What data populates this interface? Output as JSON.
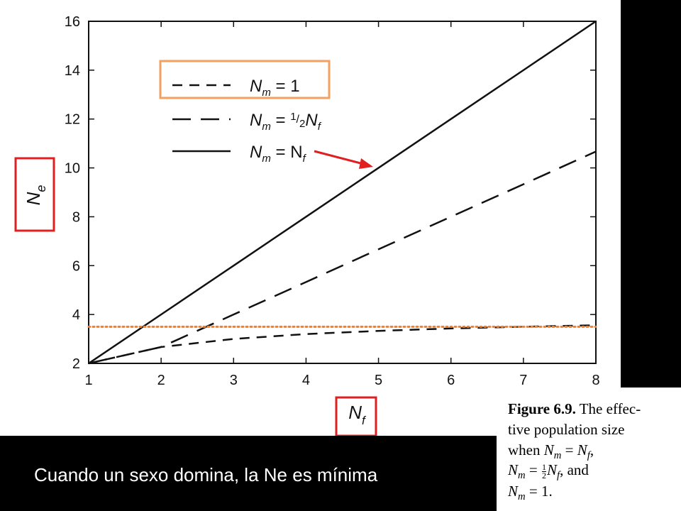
{
  "chart_data": {
    "type": "line",
    "x": [
      1,
      2,
      3,
      4,
      5,
      6,
      7,
      8
    ],
    "xlim": [
      1,
      8
    ],
    "ylim": [
      2,
      16
    ],
    "xticks": [
      "1",
      "2",
      "3",
      "4",
      "5",
      "6",
      "7",
      "8"
    ],
    "yticks": [
      "2",
      "4",
      "6",
      "8",
      "10",
      "12",
      "14",
      "16"
    ],
    "xlabel": "N",
    "xlabel_sub": "f",
    "ylabel": "N",
    "ylabel_sub": "e",
    "series": [
      {
        "name": "N_m = 1",
        "label_main": "N",
        "label_sub": "m",
        "label_rest": " = 1",
        "style": "short-dash",
        "values": [
          2.0,
          2.67,
          3.0,
          3.2,
          3.33,
          3.43,
          3.5,
          3.56
        ]
      },
      {
        "name": "N_m = 1/2 N_f",
        "label_main": "N",
        "label_sub": "m",
        "label_rest": " = ",
        "label_frac_num": "1",
        "label_frac_den": "2",
        "label_tail": "N",
        "label_tail_sub": "f",
        "style": "long-dash",
        "values": [
          2.0,
          2.67,
          4.0,
          5.33,
          6.67,
          8.0,
          9.33,
          10.67
        ]
      },
      {
        "name": "N_m = N_f",
        "label_main": "N",
        "label_sub": "m",
        "label_rest": " = N",
        "label_tail_sub": "f",
        "style": "solid",
        "values": [
          2,
          4,
          6,
          8,
          10,
          12,
          14,
          16
        ]
      }
    ],
    "reference_line": {
      "y": 3.5,
      "color": "#f08030",
      "style": "dotted"
    },
    "legend_placement": "top-left",
    "grid": false
  },
  "annotations": {
    "arrow_color": "#e02020",
    "highlight_box_color": "#e02020",
    "legend_highlight_color": "#f4a060"
  },
  "caption": {
    "bottom_text": "Cuando un sexo domina, la Ne es mínima",
    "figure_label": "Figure 6.9.",
    "figure_text_1": "The effec-",
    "figure_text_2": "tive population size",
    "figure_text_3": "when",
    "figure_text_4": "and"
  }
}
